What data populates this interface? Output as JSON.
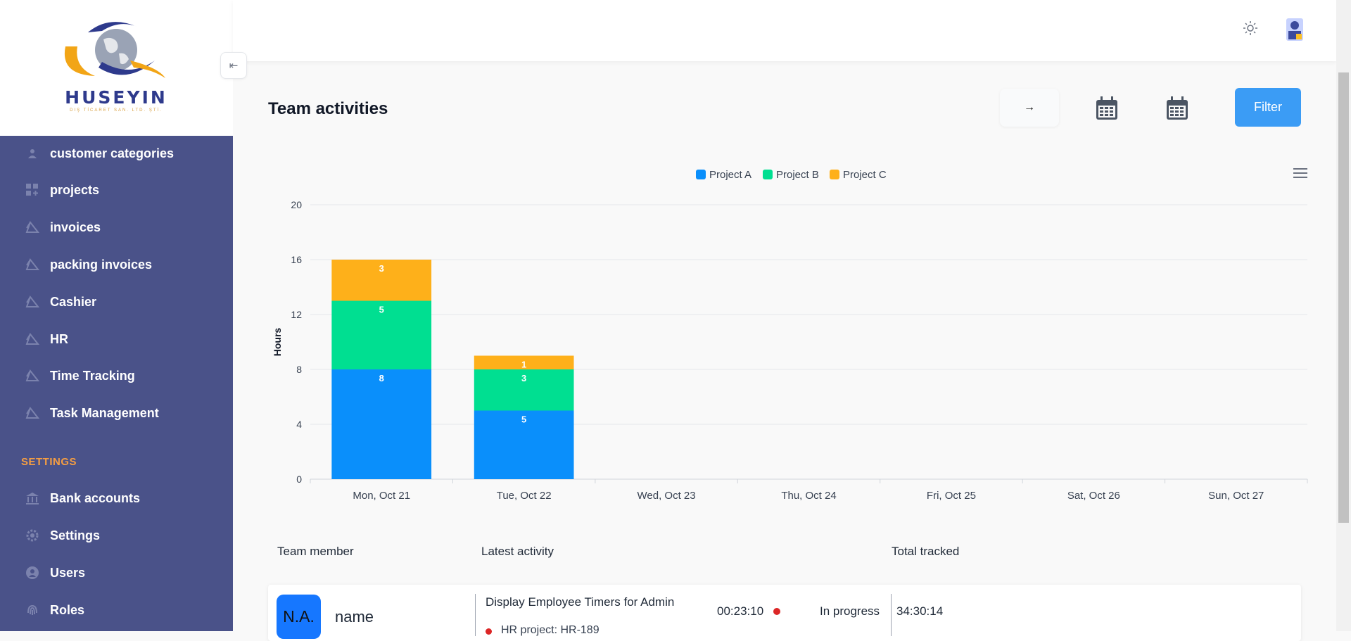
{
  "brand": {
    "logo_text": "HUSEYIN",
    "logo_subtext": "DIŞ TİCARET SAN. LTD. ŞTİ."
  },
  "sidebar": {
    "items": [
      {
        "label": "customer categories",
        "icon": "users-icon"
      },
      {
        "label": "projects",
        "icon": "grid-plus-icon"
      },
      {
        "label": "invoices",
        "icon": "triangle-icon"
      },
      {
        "label": "packing invoices",
        "icon": "triangle-icon"
      },
      {
        "label": "Cashier",
        "icon": "triangle-icon"
      },
      {
        "label": "HR",
        "icon": "triangle-icon"
      },
      {
        "label": "Time Tracking",
        "icon": "triangle-icon"
      },
      {
        "label": "Task Management",
        "icon": "triangle-icon"
      }
    ],
    "settings_heading": "SETTINGS",
    "settings_items": [
      {
        "label": "Bank accounts",
        "icon": "bank-icon"
      },
      {
        "label": "Settings",
        "icon": "gear-icon"
      },
      {
        "label": "Users",
        "icon": "user-icon"
      },
      {
        "label": "Roles",
        "icon": "fingerprint-icon"
      }
    ]
  },
  "header": {
    "collapse_glyph": "⇤",
    "theme_icon": "sun-icon",
    "avatar_icon": "user-avatar-icon"
  },
  "page": {
    "title": "Team activities",
    "arrow_glyph": "→",
    "filter_label": "Filter"
  },
  "chart_data": {
    "type": "bar",
    "stacked": true,
    "categories": [
      "Mon, Oct 21",
      "Tue, Oct 22",
      "Wed, Oct 23",
      "Thu, Oct 24",
      "Fri, Oct 25",
      "Sat, Oct 26",
      "Sun, Oct 27"
    ],
    "series": [
      {
        "name": "Project A",
        "color": "#0a8ffb",
        "values": [
          8,
          5,
          0,
          0,
          0,
          0,
          0
        ]
      },
      {
        "name": "Project B",
        "color": "#00df91",
        "values": [
          5,
          3,
          0,
          0,
          0,
          0,
          0
        ]
      },
      {
        "name": "Project C",
        "color": "#feb01a",
        "values": [
          3,
          1,
          0,
          0,
          0,
          0,
          0
        ]
      }
    ],
    "ylabel": "Hours",
    "ylim": [
      0,
      20
    ],
    "yticks": [
      0,
      4,
      8,
      12,
      16,
      20
    ],
    "legend": "top-center",
    "grid": true
  },
  "table": {
    "headers": {
      "member": "Team member",
      "activity": "Latest activity",
      "total": "Total tracked"
    },
    "rows": [
      {
        "initials": "N.A.",
        "name": "name",
        "activity_title": "Display Employee Timers for Admin",
        "activity_sub": "HR project: HR-189",
        "timer": "00:23:10",
        "status": "In progress",
        "total": "34:30:14"
      }
    ]
  }
}
